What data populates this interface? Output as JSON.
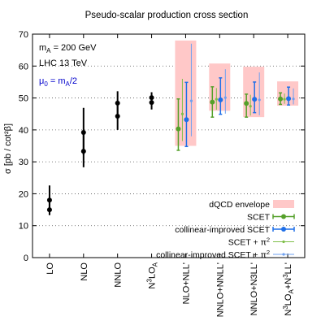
{
  "chart_data": {
    "type": "errorbar",
    "title": "Pseudo-scalar production cross section",
    "ylabel": "σ [pb / cot²β]",
    "ylim": [
      0,
      70
    ],
    "yticks": [
      0,
      10,
      20,
      30,
      40,
      50,
      60,
      70
    ],
    "grid": "dotted horizontal",
    "annotations": [
      {
        "text": "m",
        "sub": "A",
        "rest": " = 200 GeV",
        "color": "#000000"
      },
      {
        "text": "LHC 13 TeV",
        "sub": "",
        "rest": "",
        "color": "#000000"
      },
      {
        "text": "μ",
        "sub": "0",
        "rest": " = m",
        "sub2": "A",
        "rest2": "/2",
        "color": "#0000cc"
      }
    ],
    "categories": [
      {
        "text": "LO"
      },
      {
        "text": "NLO"
      },
      {
        "text": "NNLO"
      },
      {
        "text": "N",
        "sup": "3",
        "text2": "LO",
        "sub": "A"
      },
      {
        "text": "NLO+NLL'"
      },
      {
        "text": "NNLO+NNLL'"
      },
      {
        "text": "NNLO+N3LL'"
      },
      {
        "text": "N",
        "sup": "3",
        "text2": "LO",
        "sub": "A",
        "text3": "+N",
        "sup2": "3",
        "text4": "LL'"
      }
    ],
    "fixed_order": [
      {
        "category": "LO",
        "points": [
          {
            "y": 18.0,
            "err": [
              15.4,
              22.6
            ]
          },
          {
            "y": 15.0,
            "err": [
              13.3,
              17.2
            ]
          }
        ]
      },
      {
        "category": "NLO",
        "points": [
          {
            "y": 39.2,
            "err": [
              32.2,
              46.9
            ]
          },
          {
            "y": 33.3,
            "err": [
              28.3,
              39.6
            ]
          }
        ]
      },
      {
        "category": "NNLO",
        "points": [
          {
            "y": 48.4,
            "err": [
              44.8,
              52.1
            ]
          },
          {
            "y": 44.3,
            "err": [
              40.0,
              49.0
            ]
          }
        ]
      },
      {
        "category": "N3LO_A",
        "points": [
          {
            "y": 50.1,
            "err": [
              48.4,
              51.8
            ]
          },
          {
            "y": 48.6,
            "err": [
              46.4,
              50.8
            ]
          }
        ]
      }
    ],
    "resummed": [
      {
        "category": "NLO+NLL'",
        "envelope": [
          35.0,
          68.0
        ],
        "scet": {
          "y": 40.3,
          "err": [
            33.6,
            49.7
          ]
        },
        "collinear": {
          "y": 43.2,
          "err": [
            34.8,
            54.9
          ]
        },
        "scet_pi2": {
          "y": 45.0,
          "err": [
            36.5,
            56.0
          ]
        },
        "collinear_pi2": {
          "y": 49.1,
          "err": [
            38.0,
            67.0
          ]
        }
      },
      {
        "category": "NNLO+NNLL'",
        "envelope": [
          46.0,
          60.8
        ],
        "scet": {
          "y": 48.7,
          "err": [
            44.0,
            53.5
          ]
        },
        "collinear": {
          "y": 49.4,
          "err": [
            44.9,
            56.3
          ]
        },
        "scet_pi2": {
          "y": 49.6,
          "err": [
            46.3,
            53.1
          ]
        },
        "collinear_pi2": {
          "y": 50.1,
          "err": [
            45.1,
            59.0
          ]
        }
      },
      {
        "category": "NNLO+N3LL'",
        "envelope": [
          44.0,
          59.8
        ],
        "scet": {
          "y": 48.3,
          "err": [
            44.0,
            51.2
          ]
        },
        "collinear": {
          "y": 49.6,
          "err": [
            45.4,
            55.0
          ]
        },
        "scet_pi2": {
          "y": 47.4,
          "err": [
            44.5,
            51.0
          ]
        },
        "collinear_pi2": {
          "y": 49.4,
          "err": [
            44.6,
            58.0
          ]
        }
      },
      {
        "category": "N3LO_A+N3LL'",
        "envelope": [
          47.6,
          55.2
        ],
        "scet": {
          "y": 49.7,
          "err": [
            48.0,
            51.6
          ]
        },
        "collinear": {
          "y": 49.8,
          "err": [
            47.8,
            53.4
          ]
        },
        "scet_pi2": {
          "y": 49.6,
          "err": [
            48.2,
            51.4
          ]
        },
        "collinear_pi2": {
          "y": 49.7,
          "err": [
            48.0,
            53.0
          ]
        }
      }
    ],
    "legend": {
      "placement": "bottom-right",
      "entries": [
        {
          "label": "dQCD envelope",
          "kind": "box"
        },
        {
          "label": "SCET",
          "kind": "scet"
        },
        {
          "label": "collinear-improved SCET",
          "kind": "collinear"
        },
        {
          "label": "SCET + π",
          "sup": "2",
          "kind": "scet_pi2"
        },
        {
          "label": "collinear-improved SCET + π",
          "sup": "2",
          "kind": "collinear_pi2"
        }
      ]
    },
    "colors": {
      "fixed_order": "#000000",
      "envelope": "#ffc8c8",
      "scet": "#55a02a",
      "collinear": "#1f6fe8",
      "scet_pi2": "#7fbf4a",
      "collinear_pi2": "#6ea0f0",
      "grid": "#555555"
    }
  }
}
